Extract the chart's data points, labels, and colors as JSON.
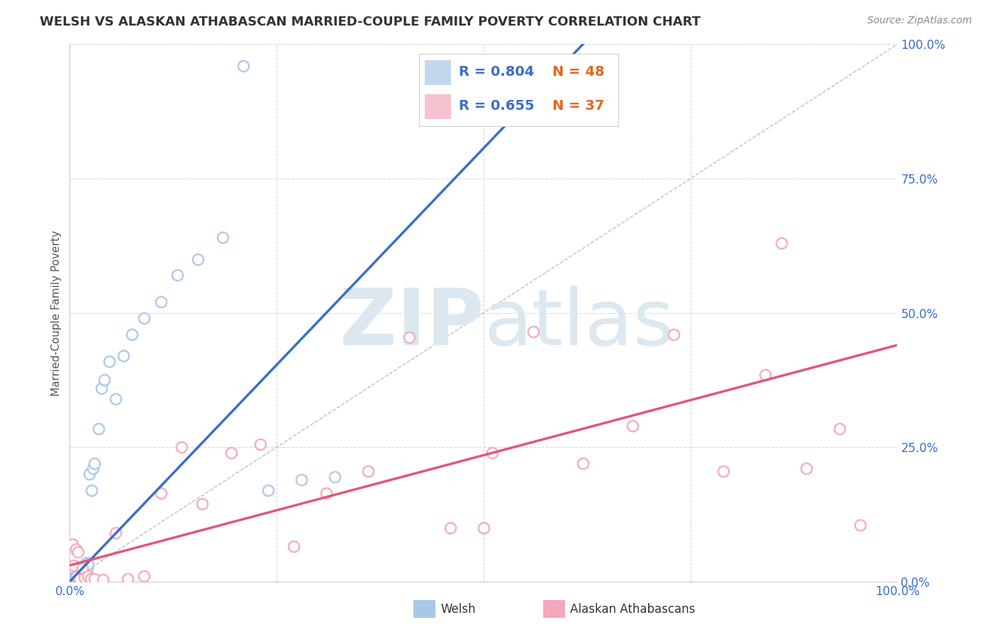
{
  "title": "WELSH VS ALASKAN ATHABASCAN MARRIED-COUPLE FAMILY POVERTY CORRELATION CHART",
  "source": "Source: ZipAtlas.com",
  "ylabel": "Married-Couple Family Poverty",
  "xlim": [
    0,
    1
  ],
  "ylim": [
    0,
    1
  ],
  "xticks": [
    0,
    0.25,
    0.5,
    0.75,
    1.0
  ],
  "yticks": [
    0,
    0.25,
    0.5,
    0.75,
    1.0
  ],
  "xticklabels": [
    "0.0%",
    "",
    "",
    "",
    "100.0%"
  ],
  "yticklabels": [
    "0.0%",
    "25.0%",
    "50.0%",
    "75.0%",
    "100.0%"
  ],
  "welsh_R": 0.804,
  "welsh_N": 48,
  "athabascan_R": 0.655,
  "athabascan_N": 37,
  "welsh_color": "#a8c8e8",
  "athabascan_color": "#f4a8bc",
  "welsh_line_color": "#3a6fc8",
  "athabascan_line_color": "#e05878",
  "reference_line_color": "#c0c0c0",
  "grid_color": "#d8d8e0",
  "watermark_zip": "ZIP",
  "watermark_atlas": "atlas",
  "watermark_color": "#dce8f0",
  "legend_r_color": "#3a6fc8",
  "legend_n_color": "#e06820",
  "background_color": "#ffffff",
  "welsh_scatter_x": [
    0.002,
    0.003,
    0.004,
    0.004,
    0.005,
    0.005,
    0.006,
    0.006,
    0.007,
    0.007,
    0.008,
    0.008,
    0.009,
    0.01,
    0.01,
    0.011,
    0.012,
    0.012,
    0.013,
    0.014,
    0.015,
    0.016,
    0.017,
    0.018,
    0.019,
    0.02,
    0.021,
    0.022,
    0.024,
    0.026,
    0.028,
    0.03,
    0.035,
    0.038,
    0.042,
    0.048,
    0.055,
    0.065,
    0.075,
    0.09,
    0.11,
    0.13,
    0.155,
    0.185,
    0.21,
    0.24,
    0.28,
    0.32
  ],
  "welsh_scatter_y": [
    0.002,
    0.003,
    0.005,
    0.008,
    0.003,
    0.007,
    0.004,
    0.009,
    0.005,
    0.01,
    0.006,
    0.012,
    0.008,
    0.005,
    0.015,
    0.01,
    0.008,
    0.018,
    0.012,
    0.02,
    0.015,
    0.025,
    0.02,
    0.03,
    0.022,
    0.035,
    0.025,
    0.032,
    0.2,
    0.17,
    0.21,
    0.22,
    0.285,
    0.36,
    0.375,
    0.41,
    0.34,
    0.42,
    0.46,
    0.49,
    0.52,
    0.57,
    0.6,
    0.64,
    0.96,
    0.17,
    0.19,
    0.195
  ],
  "athabascan_scatter_x": [
    0.003,
    0.005,
    0.007,
    0.008,
    0.01,
    0.012,
    0.015,
    0.018,
    0.022,
    0.025,
    0.03,
    0.04,
    0.055,
    0.07,
    0.09,
    0.11,
    0.135,
    0.16,
    0.195,
    0.23,
    0.27,
    0.31,
    0.36,
    0.41,
    0.46,
    0.51,
    0.56,
    0.62,
    0.68,
    0.73,
    0.79,
    0.84,
    0.89,
    0.93,
    0.955,
    0.5,
    0.86
  ],
  "athabascan_scatter_y": [
    0.07,
    0.03,
    0.06,
    0.01,
    0.055,
    0.005,
    0.025,
    0.008,
    0.01,
    0.005,
    0.005,
    0.003,
    0.09,
    0.005,
    0.01,
    0.165,
    0.25,
    0.145,
    0.24,
    0.255,
    0.065,
    0.165,
    0.205,
    0.455,
    0.1,
    0.24,
    0.465,
    0.22,
    0.29,
    0.46,
    0.205,
    0.385,
    0.21,
    0.285,
    0.105,
    0.1,
    0.63
  ],
  "welsh_line_x": [
    0.0,
    0.62
  ],
  "welsh_line_y": [
    0.0,
    1.0
  ],
  "athabascan_line_x": [
    0.0,
    1.0
  ],
  "athabascan_line_y": [
    0.03,
    0.44
  ]
}
